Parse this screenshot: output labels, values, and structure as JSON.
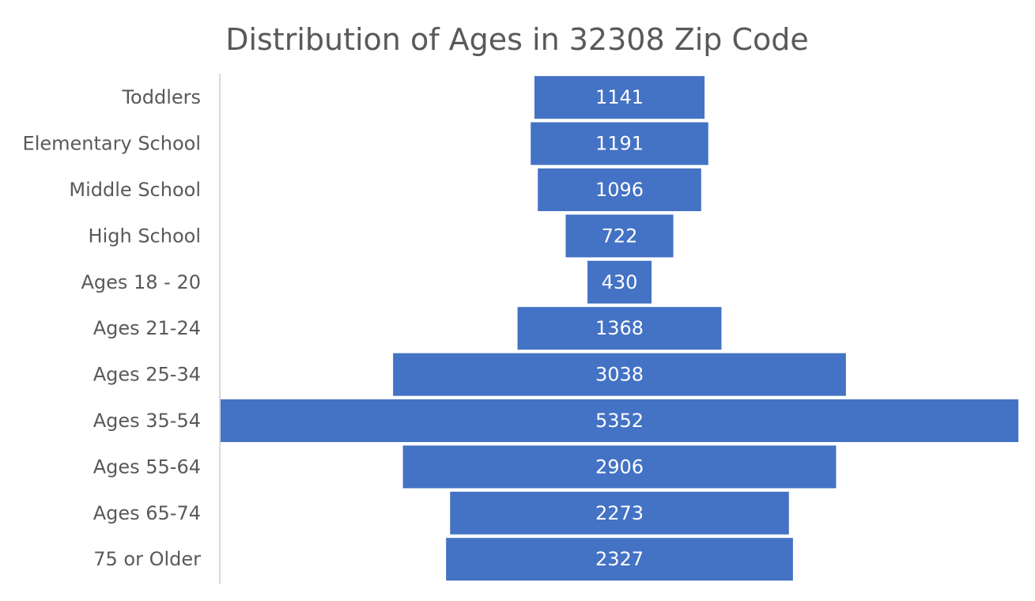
{
  "chart_data": {
    "type": "bar",
    "orientation": "horizontal",
    "layout": "centered-funnel",
    "title": "Distribution of Ages in 32308 Zip Code",
    "xlabel": "",
    "ylabel": "",
    "categories": [
      "Toddlers",
      "Elementary School",
      "Middle School",
      "High School",
      "Ages 18 - 20",
      "Ages 21-24",
      "Ages 25-34",
      "Ages 35-54",
      "Ages 55-64",
      "Ages 65-74",
      "75 or Older"
    ],
    "values": [
      1141,
      1191,
      1096,
      722,
      430,
      1368,
      3038,
      5352,
      2906,
      2273,
      2327
    ],
    "data_labels": [
      "1141",
      "1191",
      "1096",
      "722",
      "430",
      "1368",
      "3038",
      "5352",
      "2906",
      "2273",
      "2327"
    ],
    "xlim": [
      0,
      5352
    ],
    "grid": false,
    "legend": "none",
    "colors": {
      "bar": "#4472C4",
      "bar_label": "#FFFFFF",
      "text": "#595959",
      "axis": "#D9D9D9"
    }
  }
}
